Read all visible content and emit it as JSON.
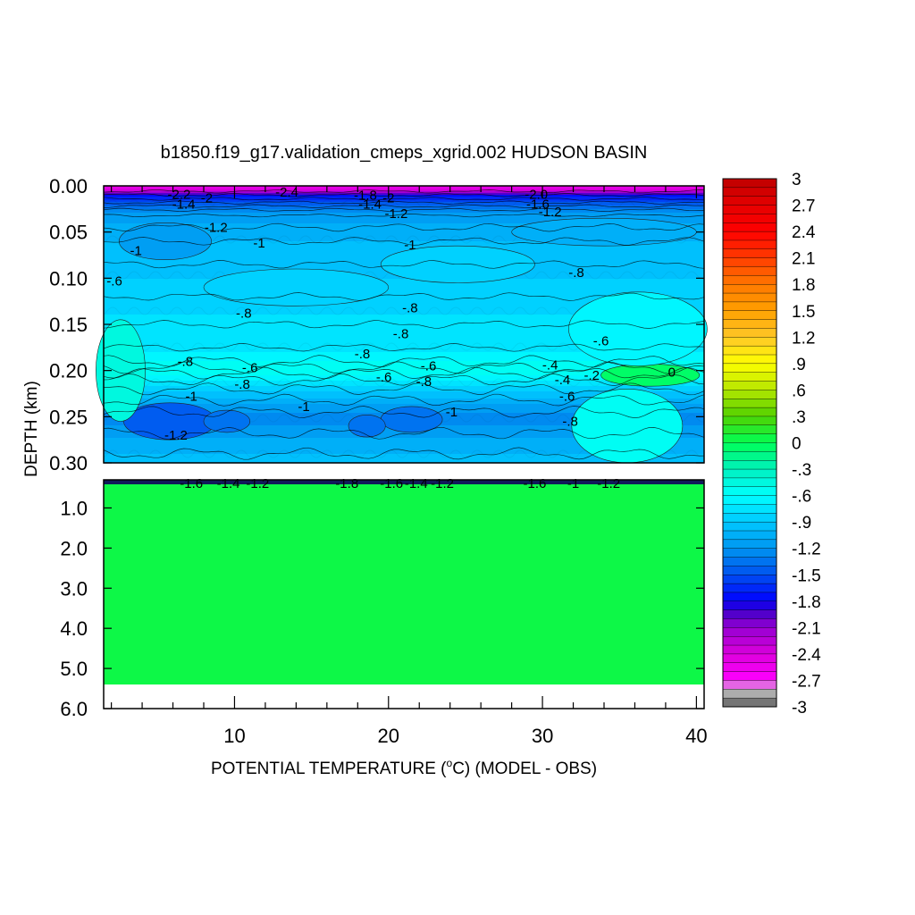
{
  "chart_data": {
    "type": "heatmap",
    "title": "b1850.f19_g17.validation_cmeps_xgrid.002 HUDSON BASIN",
    "xlabel_prefix": "POTENTIAL TEMPERATURE (",
    "xlabel_degree": "o",
    "xlabel_suffix": "C) (MODEL - OBS)",
    "ylabel": "DEPTH (km)",
    "x_range": [
      1.5,
      40.5
    ],
    "x_ticks": [
      "10",
      "20",
      "30",
      "40"
    ],
    "x_tick_values": [
      10,
      20,
      30,
      40
    ],
    "upper_panel": {
      "ylim": [
        0.3,
        0.0
      ],
      "y_ticks": [
        "0.00",
        "0.05",
        "0.10",
        "0.15",
        "0.20",
        "0.25",
        "0.30"
      ],
      "y_tick_values": [
        0.0,
        0.05,
        0.1,
        0.15,
        0.2,
        0.25,
        0.3
      ]
    },
    "lower_panel": {
      "ylim": [
        6.0,
        0.3
      ],
      "y_ticks": [
        "1.0",
        "2.0",
        "3.0",
        "4.0",
        "5.0",
        "6.0"
      ],
      "y_tick_values": [
        1.0,
        2.0,
        3.0,
        4.0,
        5.0,
        6.0
      ],
      "data_bottom_depth": 5.4,
      "fill_value": 0
    },
    "colorbar": {
      "range": [
        -3,
        3
      ],
      "step": 0.1,
      "labels": [
        "3",
        "2.7",
        "2.4",
        "2.1",
        "1.8",
        "1.5",
        "1.2",
        ".9",
        ".6",
        ".3",
        "0",
        "-.3",
        "-.6",
        "-.9",
        "-1.2",
        "-1.5",
        "-1.8",
        "-2.1",
        "-2.4",
        "-2.7",
        "-3"
      ],
      "label_values": [
        3,
        2.7,
        2.4,
        2.1,
        1.8,
        1.5,
        1.2,
        0.9,
        0.6,
        0.3,
        0,
        -0.3,
        -0.6,
        -0.9,
        -1.2,
        -1.5,
        -1.8,
        -2.1,
        -2.4,
        -2.7,
        -3
      ]
    },
    "upper_field_profile": {
      "depths": [
        0.0,
        0.003,
        0.006,
        0.01,
        0.015,
        0.02,
        0.025,
        0.03,
        0.04,
        0.05,
        0.06,
        0.08,
        0.1,
        0.12,
        0.14,
        0.16,
        0.18,
        0.19,
        0.195,
        0.2,
        0.205,
        0.21,
        0.22,
        0.23,
        0.24,
        0.25,
        0.26,
        0.28,
        0.3
      ],
      "values": [
        -2.5,
        -2.5,
        -2.2,
        -1.8,
        -1.6,
        -1.45,
        -1.3,
        -1.2,
        -1.1,
        -1.05,
        -1.0,
        -0.95,
        -0.9,
        -0.85,
        -0.8,
        -0.75,
        -0.7,
        -0.6,
        -0.5,
        -0.55,
        -0.6,
        -0.7,
        -0.85,
        -1.0,
        -1.15,
        -1.25,
        -1.2,
        -1.05,
        -0.95
      ]
    },
    "contour_labels": [
      {
        "text": "-2.2",
        "x": 6.4,
        "depth": 0.009
      },
      {
        "text": "-2",
        "x": 8.2,
        "depth": 0.013
      },
      {
        "text": "-1.4",
        "x": 6.7,
        "depth": 0.02
      },
      {
        "text": "-2.4",
        "x": 13.4,
        "depth": 0.007
      },
      {
        "text": "-1.8",
        "x": 18.5,
        "depth": 0.01
      },
      {
        "text": "-2",
        "x": 20.0,
        "depth": 0.013
      },
      {
        "text": "-1.4",
        "x": 18.8,
        "depth": 0.02
      },
      {
        "text": "-1.2",
        "x": 20.5,
        "depth": 0.03
      },
      {
        "text": "-2.0",
        "x": 29.6,
        "depth": 0.009
      },
      {
        "text": "-1.6",
        "x": 29.7,
        "depth": 0.02
      },
      {
        "text": "-1.2",
        "x": 30.5,
        "depth": 0.028
      },
      {
        "text": "-1.2",
        "x": 8.8,
        "depth": 0.045
      },
      {
        "text": "-1",
        "x": 3.6,
        "depth": 0.07
      },
      {
        "text": "-1",
        "x": 11.6,
        "depth": 0.062
      },
      {
        "text": "-1",
        "x": 21.4,
        "depth": 0.064
      },
      {
        "text": "-.8",
        "x": 32.2,
        "depth": 0.094
      },
      {
        "text": "-.6",
        "x": 2.2,
        "depth": 0.103
      },
      {
        "text": "-.8",
        "x": 21.4,
        "depth": 0.132
      },
      {
        "text": "-.8",
        "x": 10.6,
        "depth": 0.138
      },
      {
        "text": "-.8",
        "x": 20.8,
        "depth": 0.16
      },
      {
        "text": "-.6",
        "x": 33.8,
        "depth": 0.168
      },
      {
        "text": "-.8",
        "x": 6.8,
        "depth": 0.19
      },
      {
        "text": "-.6",
        "x": 11.0,
        "depth": 0.197
      },
      {
        "text": "-.8",
        "x": 18.3,
        "depth": 0.182
      },
      {
        "text": "-.6",
        "x": 22.6,
        "depth": 0.195
      },
      {
        "text": "-.4",
        "x": 30.5,
        "depth": 0.194
      },
      {
        "text": "-.6",
        "x": 19.7,
        "depth": 0.207
      },
      {
        "text": "-.8",
        "x": 10.5,
        "depth": 0.215
      },
      {
        "text": "-.8",
        "x": 22.3,
        "depth": 0.212
      },
      {
        "text": "-.4",
        "x": 31.3,
        "depth": 0.21
      },
      {
        "text": "-.2",
        "x": 33.2,
        "depth": 0.205
      },
      {
        "text": "0",
        "x": 38.4,
        "depth": 0.202
      },
      {
        "text": "-1",
        "x": 7.2,
        "depth": 0.228
      },
      {
        "text": "-.6",
        "x": 31.6,
        "depth": 0.228
      },
      {
        "text": "-1",
        "x": 14.5,
        "depth": 0.239
      },
      {
        "text": "-1",
        "x": 24.1,
        "depth": 0.245
      },
      {
        "text": "-.8",
        "x": 31.8,
        "depth": 0.255
      },
      {
        "text": "-1.2",
        "x": 6.2,
        "depth": 0.27
      }
    ],
    "lower_contour_labels": [
      {
        "text": "-1.6",
        "x": 7.2,
        "depth": 0.36
      },
      {
        "text": "-1.4",
        "x": 9.6,
        "depth": 0.36
      },
      {
        "text": "-1.2",
        "x": 11.5,
        "depth": 0.36
      },
      {
        "text": "-1.8",
        "x": 17.3,
        "depth": 0.36
      },
      {
        "text": "-1.6",
        "x": 20.2,
        "depth": 0.36
      },
      {
        "text": "-1.4",
        "x": 21.8,
        "depth": 0.36
      },
      {
        "text": "-1.2",
        "x": 23.5,
        "depth": 0.36
      },
      {
        "text": "-1.6",
        "x": 29.5,
        "depth": 0.36
      },
      {
        "text": "-1",
        "x": 32.0,
        "depth": 0.36
      },
      {
        "text": "-1.2",
        "x": 34.3,
        "depth": 0.36
      }
    ]
  }
}
